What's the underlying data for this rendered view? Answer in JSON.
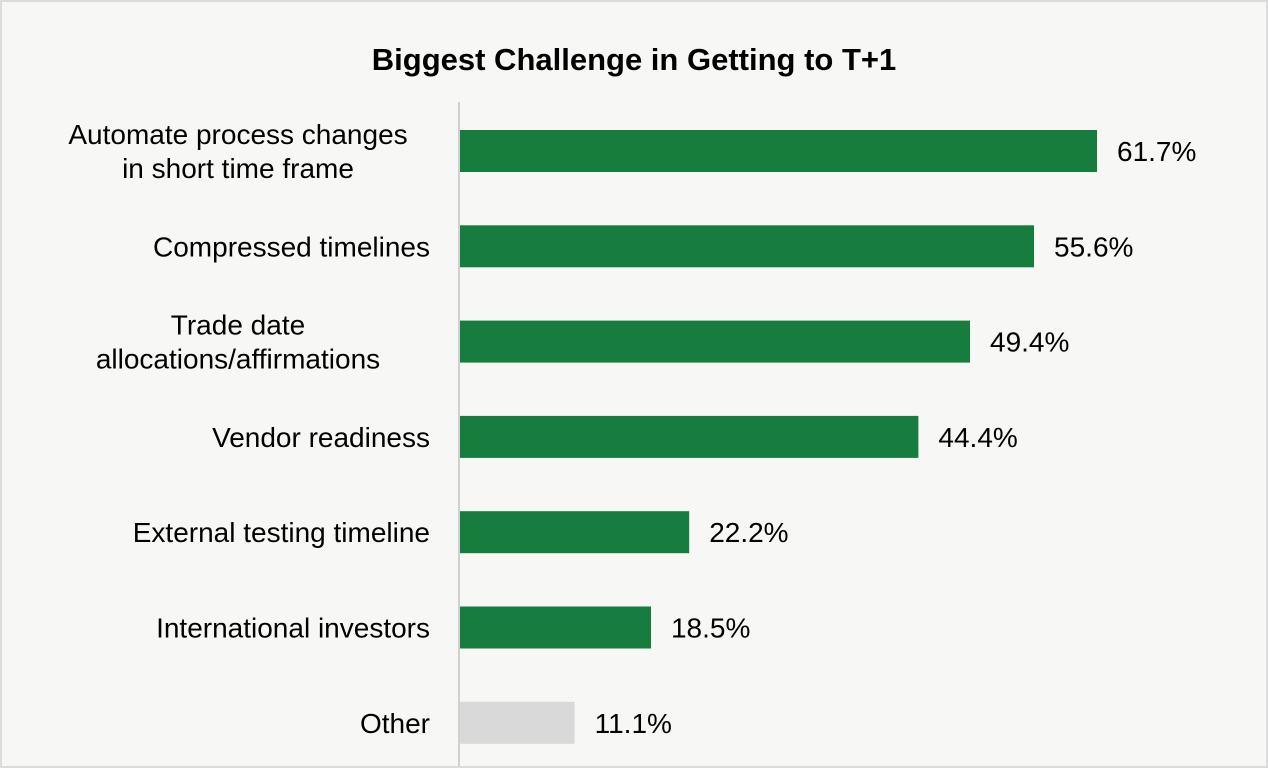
{
  "chart_data": {
    "type": "bar",
    "orientation": "horizontal",
    "title": "Biggest Challenge in Getting to T+1",
    "xlabel": "",
    "ylabel": "",
    "grid": false,
    "legend": "none",
    "xlim": [
      0,
      70
    ],
    "categories": [
      [
        "Automate process changes",
        "in short time frame"
      ],
      [
        "Compressed timelines"
      ],
      [
        "Trade date",
        "allocations/affirmations"
      ],
      [
        "Vendor readiness"
      ],
      [
        "External testing timeline"
      ],
      [
        "International investors"
      ],
      [
        "Other"
      ]
    ],
    "values": [
      61.7,
      55.6,
      49.4,
      44.4,
      22.2,
      18.5,
      11.1
    ],
    "value_labels": [
      "61.7%",
      "55.6%",
      "49.4%",
      "44.4%",
      "22.2%",
      "18.5%",
      "11.1%"
    ],
    "colors": [
      "#167d3e",
      "#167d3e",
      "#167d3e",
      "#167d3e",
      "#167d3e",
      "#167d3e",
      "#d9d9d9"
    ],
    "axis_color": "#d0d0d0"
  }
}
